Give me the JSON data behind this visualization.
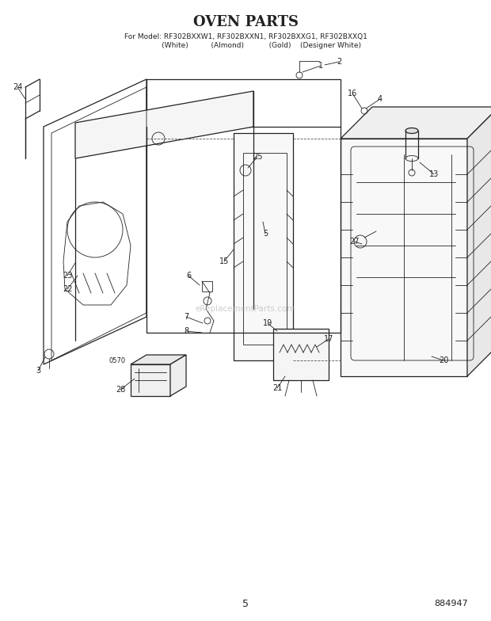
{
  "title": "OVEN PARTS",
  "subtitle_line1": "For Model: RF302BXXW1, RF302BXXN1, RF302BXXG1, RF302BXXQ1",
  "subtitle_line2": "              (White)          (Almond)           (Gold)    (Designer White)",
  "page_number": "5",
  "part_number": "884947",
  "background_color": "#ffffff",
  "line_color": "#222222",
  "fig_width": 6.2,
  "fig_height": 7.84,
  "dpi": 100
}
